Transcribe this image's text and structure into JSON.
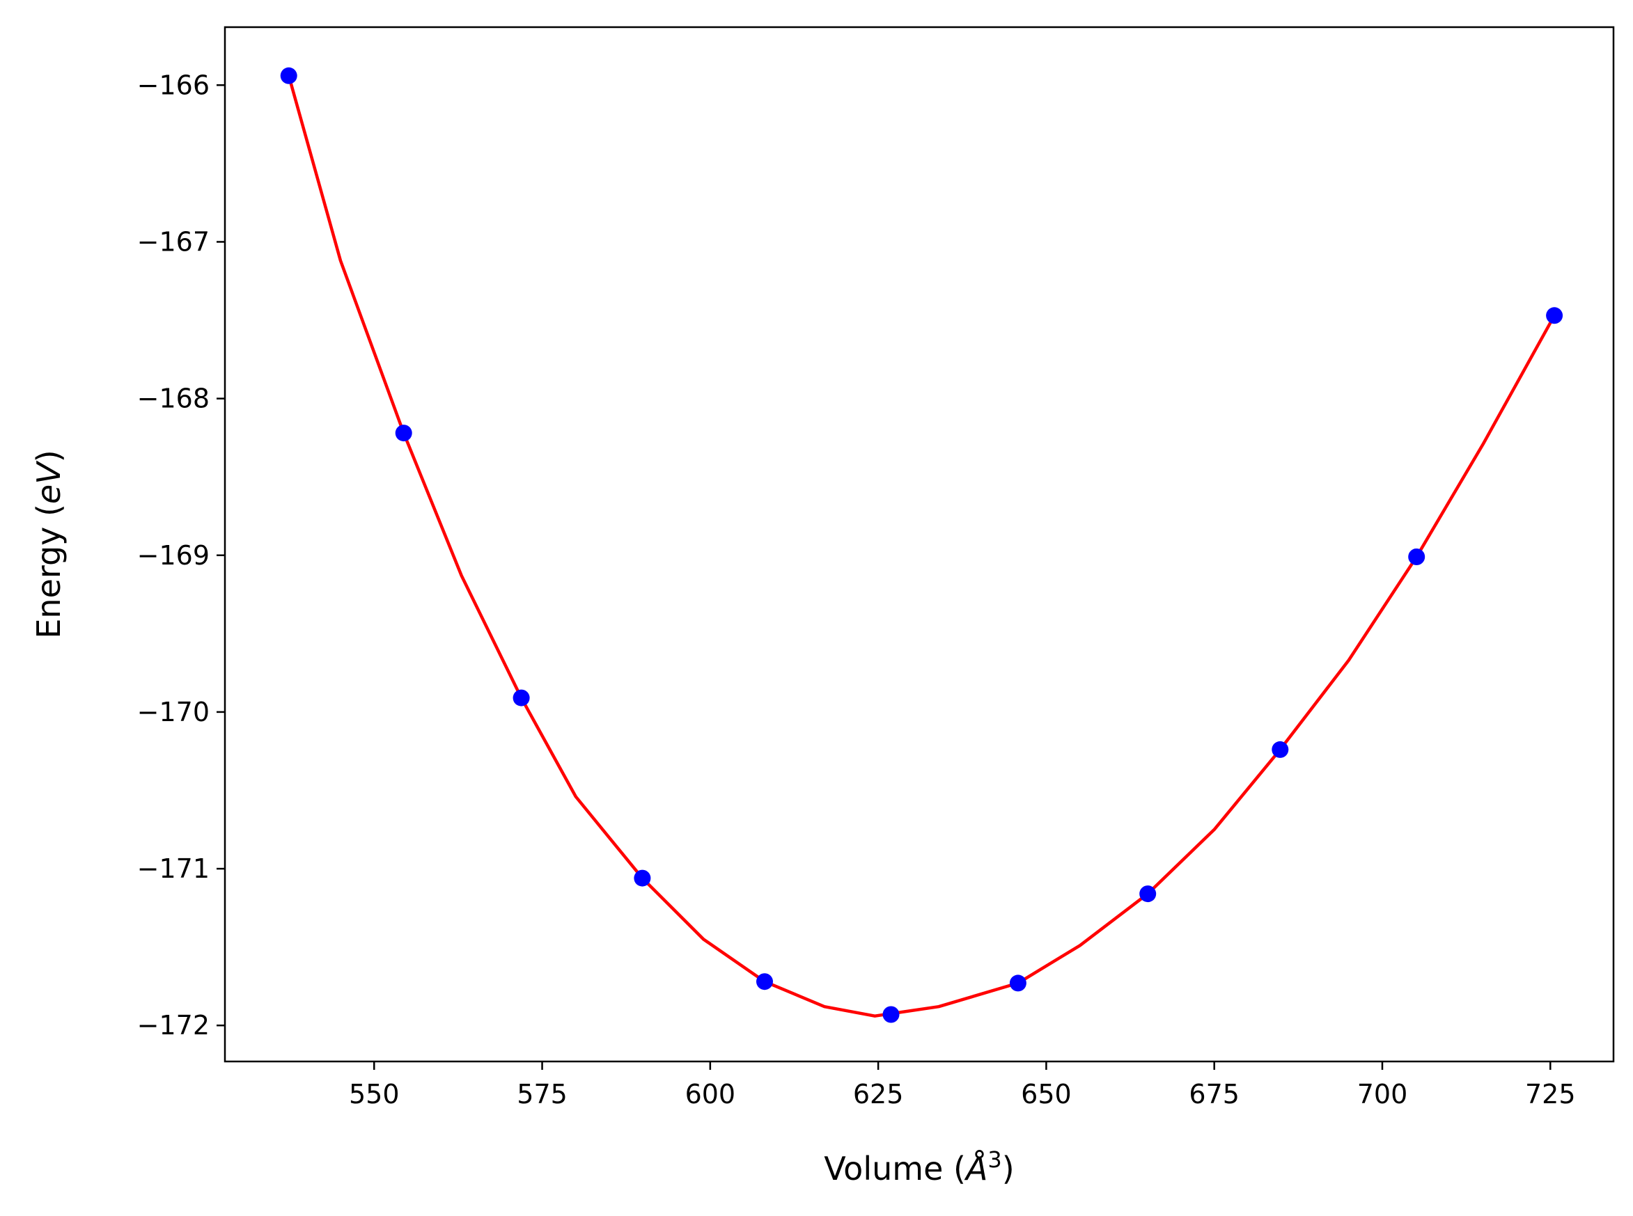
{
  "chart_data": {
    "type": "scatter",
    "xlabel_main": "Volume (",
    "xlabel_unit": "Å",
    "xlabel_exp": "3",
    "xlabel_close": ")",
    "ylabel_main": "Energy (",
    "ylabel_unit": "eV",
    "ylabel_close": ")",
    "xlim": [
      527.8,
      734.4
    ],
    "ylim": [
      -172.23,
      -165.63
    ],
    "xticks": [
      550,
      575,
      600,
      625,
      650,
      675,
      700,
      725
    ],
    "xtick_labels": [
      "550",
      "575",
      "600",
      "625",
      "650",
      "675",
      "700",
      "725"
    ],
    "yticks": [
      -166,
      -167,
      -168,
      -169,
      -170,
      -171,
      -172
    ],
    "ytick_labels": [
      "−166",
      "−167",
      "−168",
      "−169",
      "−170",
      "−171",
      "−172"
    ],
    "grid": false,
    "series": [
      {
        "kind": "points",
        "color": "#0000ff",
        "x": [
          537.3,
          554.4,
          571.9,
          589.9,
          608.1,
          626.9,
          645.8,
          665.1,
          684.8,
          705.1,
          725.6
        ],
        "y": [
          -165.94,
          -168.22,
          -169.91,
          -171.06,
          -171.72,
          -171.93,
          -171.73,
          -171.16,
          -170.24,
          -169.01,
          -167.47
        ]
      },
      {
        "kind": "fit-curve",
        "color": "#ff0000",
        "x": [
          537.3,
          545.0,
          554.4,
          563.0,
          571.9,
          580.0,
          589.9,
          599.0,
          608.1,
          617.0,
          624.5,
          634.0,
          645.8,
          655.0,
          665.1,
          675.0,
          684.8,
          695.0,
          705.1,
          715.0,
          725.6
        ],
        "y": [
          -165.94,
          -167.12,
          -168.22,
          -169.13,
          -169.91,
          -170.54,
          -171.06,
          -171.45,
          -171.72,
          -171.88,
          -171.94,
          -171.88,
          -171.73,
          -171.49,
          -171.16,
          -170.75,
          -170.24,
          -169.67,
          -169.01,
          -168.29,
          -167.47
        ]
      }
    ]
  }
}
